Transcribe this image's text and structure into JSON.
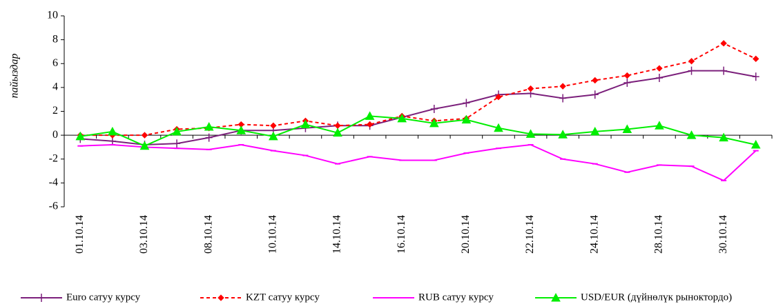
{
  "chart_data": {
    "type": "line",
    "ylabel": "пайыздар",
    "categories": [
      "01.10.14",
      null,
      "03.10.14",
      null,
      "08.10.14",
      null,
      "10.10.14",
      null,
      "14.10.14",
      null,
      "16.10.14",
      null,
      "20.10.14",
      null,
      "22.10.14",
      null,
      "24.10.14",
      null,
      "28.10.14",
      null,
      "30.10.14",
      null
    ],
    "series": [
      {
        "name": "Euro сатуу курсу",
        "color": "#7b1f7b",
        "marker": "plus",
        "line_style": "solid",
        "values": [
          -0.3,
          -0.5,
          -0.8,
          -0.7,
          -0.2,
          0.4,
          0.4,
          0.6,
          0.8,
          0.8,
          1.5,
          2.2,
          2.7,
          3.4,
          3.5,
          3.1,
          3.4,
          4.4,
          4.8,
          5.4,
          5.4,
          4.9
        ]
      },
      {
        "name": "KZT сатуу курсу",
        "color": "#ff0000",
        "marker": "diamond",
        "line_style": "dashed",
        "values": [
          0,
          0,
          0,
          0.5,
          0.6,
          0.9,
          0.8,
          1.2,
          0.8,
          0.9,
          1.6,
          1.2,
          1.4,
          3.2,
          3.9,
          4.1,
          4.6,
          5.0,
          5.6,
          6.2,
          7.7,
          6.4
        ]
      },
      {
        "name": "RUB сатуу курсу",
        "color": "#ff00ff",
        "marker": "dash",
        "line_style": "solid",
        "values": [
          -0.9,
          -0.8,
          -1.0,
          -1.1,
          -1.2,
          -0.8,
          -1.3,
          -1.7,
          -2.4,
          -1.8,
          -2.1,
          -2.1,
          -1.5,
          -1.1,
          -0.8,
          -2.0,
          -2.4,
          -3.1,
          -2.5,
          -2.6,
          -3.8,
          -1.3
        ]
      },
      {
        "name": "USD/EUR (дүйнөлүк рыноктордо)",
        "color": "#00ee00",
        "marker": "triangle",
        "line_style": "solid",
        "values": [
          -0.1,
          0.3,
          -0.9,
          0.3,
          0.7,
          0.4,
          -0.1,
          0.9,
          0.2,
          1.6,
          1.4,
          1.0,
          1.3,
          0.6,
          0.1,
          0.05,
          0.3,
          0.5,
          0.8,
          0.0,
          -0.2,
          -0.8
        ]
      }
    ],
    "ylim": [
      -6,
      10
    ],
    "yticks": [
      -6,
      -4,
      -2,
      0,
      2,
      4,
      6,
      8,
      10
    ],
    "legend": "bottom"
  }
}
